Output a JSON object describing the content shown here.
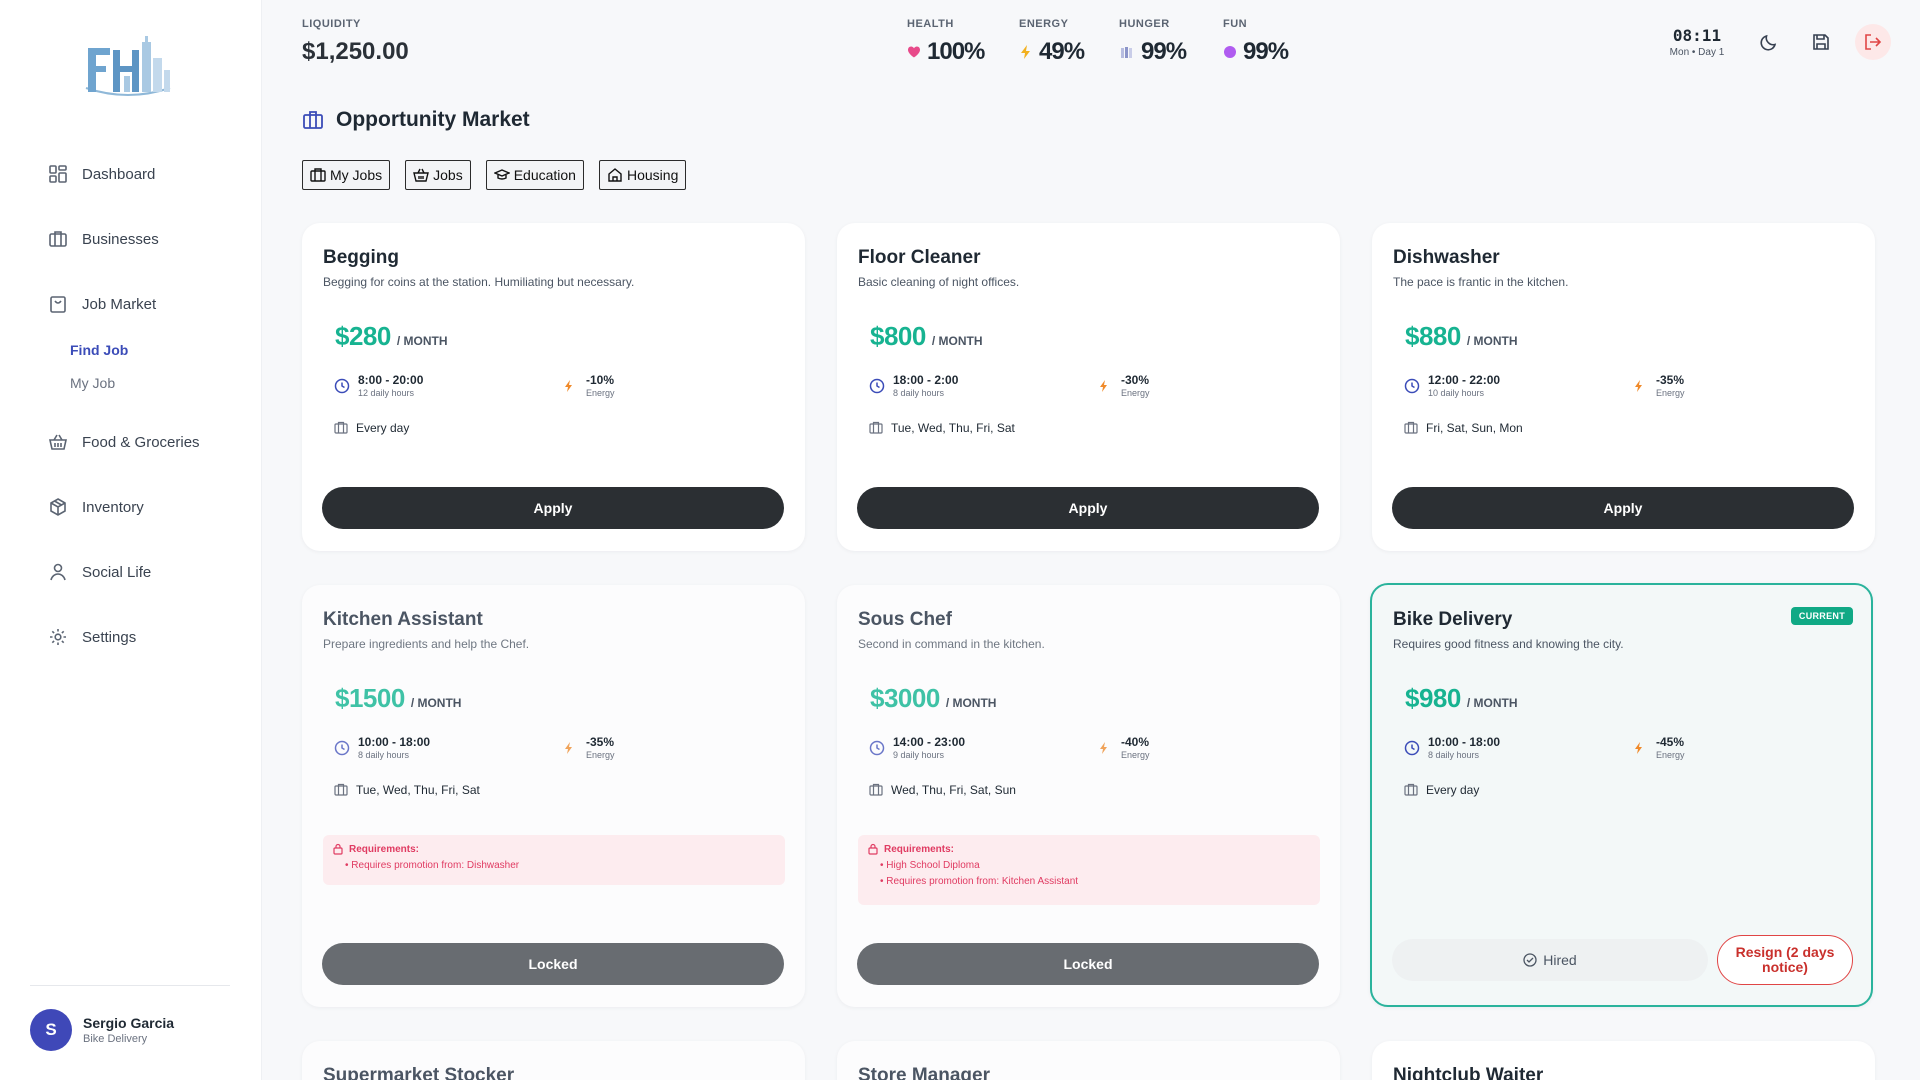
{
  "sidebar": {
    "items": [
      {
        "label": "Dashboard",
        "icon": "grid-icon"
      },
      {
        "label": "Businesses",
        "icon": "briefcase-icon"
      },
      {
        "label": "Job Market",
        "icon": "shopping-bag-icon"
      },
      {
        "label": "Food & Groceries",
        "icon": "basket-icon"
      },
      {
        "label": "Inventory",
        "icon": "package-icon"
      },
      {
        "label": "Social Life",
        "icon": "user-icon"
      },
      {
        "label": "Settings",
        "icon": "gear-icon"
      }
    ],
    "subitems": [
      "Find Job",
      "My Job"
    ],
    "user": {
      "initial": "S",
      "name": "Sergio Garcia",
      "role": "Bike Delivery"
    }
  },
  "header": {
    "liquidity_label": "LIQUIDITY",
    "liquidity_value": "$1,250.00",
    "stats": [
      {
        "label": "HEALTH",
        "value": "100%",
        "icon": "heart-icon",
        "color": "#e84a8a"
      },
      {
        "label": "ENERGY",
        "value": "49%",
        "icon": "lightning-icon",
        "color": "#f2b01e"
      },
      {
        "label": "HUNGER",
        "value": "99%",
        "icon": "food-icon",
        "color": "#8c95c9"
      },
      {
        "label": "FUN",
        "value": "99%",
        "icon": "dot-icon",
        "color": "#b05cf0"
      }
    ],
    "clock_time": "08:11",
    "clock_day": "Mon • Day 1"
  },
  "market": {
    "title": "Opportunity Market",
    "filters": [
      "My Jobs",
      "Jobs",
      "Education",
      "Housing"
    ]
  },
  "jobs": [
    {
      "title": "Begging",
      "desc": "Begging for coins at the station. Humiliating but necessary.",
      "salary": "$280",
      "per": "/ MONTH",
      "hours": "8:00 - 20:00",
      "hours_sub": "12 daily hours",
      "energy": "-10%",
      "energy_sub": "Energy",
      "days": "Every day",
      "button": "Apply"
    },
    {
      "title": "Floor Cleaner",
      "desc": "Basic cleaning of night offices.",
      "salary": "$800",
      "per": "/ MONTH",
      "hours": "18:00 - 2:00",
      "hours_sub": "8 daily hours",
      "energy": "-30%",
      "energy_sub": "Energy",
      "days": "Tue, Wed, Thu, Fri, Sat",
      "button": "Apply"
    },
    {
      "title": "Dishwasher",
      "desc": "The pace is frantic in the kitchen.",
      "salary": "$880",
      "per": "/ MONTH",
      "hours": "12:00 - 22:00",
      "hours_sub": "10 daily hours",
      "energy": "-35%",
      "energy_sub": "Energy",
      "days": "Fri, Sat, Sun, Mon",
      "button": "Apply"
    },
    {
      "title": "Kitchen Assistant",
      "desc": "Prepare ingredients and help the Chef.",
      "salary": "$1500",
      "per": "/ MONTH",
      "hours": "10:00 - 18:00",
      "hours_sub": "8 daily hours",
      "energy": "-35%",
      "energy_sub": "Energy",
      "days": "Tue, Wed, Thu, Fri, Sat",
      "req_title": "Requirements:",
      "reqs": [
        "• Requires promotion from: Dishwasher"
      ],
      "button": "Locked"
    },
    {
      "title": "Sous Chef",
      "desc": "Second in command in the kitchen.",
      "salary": "$3000",
      "per": "/ MONTH",
      "hours": "14:00 - 23:00",
      "hours_sub": "9 daily hours",
      "energy": "-40%",
      "energy_sub": "Energy",
      "days": "Wed, Thu, Fri, Sat, Sun",
      "req_title": "Requirements:",
      "reqs": [
        "• High School Diploma",
        "• Requires promotion from: Kitchen Assistant"
      ],
      "button": "Locked"
    },
    {
      "title": "Bike Delivery",
      "desc": "Requires good fitness and knowing the city.",
      "salary": "$980",
      "per": "/ MONTH",
      "hours": "10:00 - 18:00",
      "hours_sub": "8 daily hours",
      "energy": "-45%",
      "energy_sub": "Energy",
      "days": "Every day",
      "badge": "CURRENT",
      "hired": "Hired",
      "resign": "Resign (2 days notice)"
    },
    {
      "title": "Supermarket Stocker"
    },
    {
      "title": "Store Manager"
    },
    {
      "title": "Nightclub Waiter"
    }
  ]
}
